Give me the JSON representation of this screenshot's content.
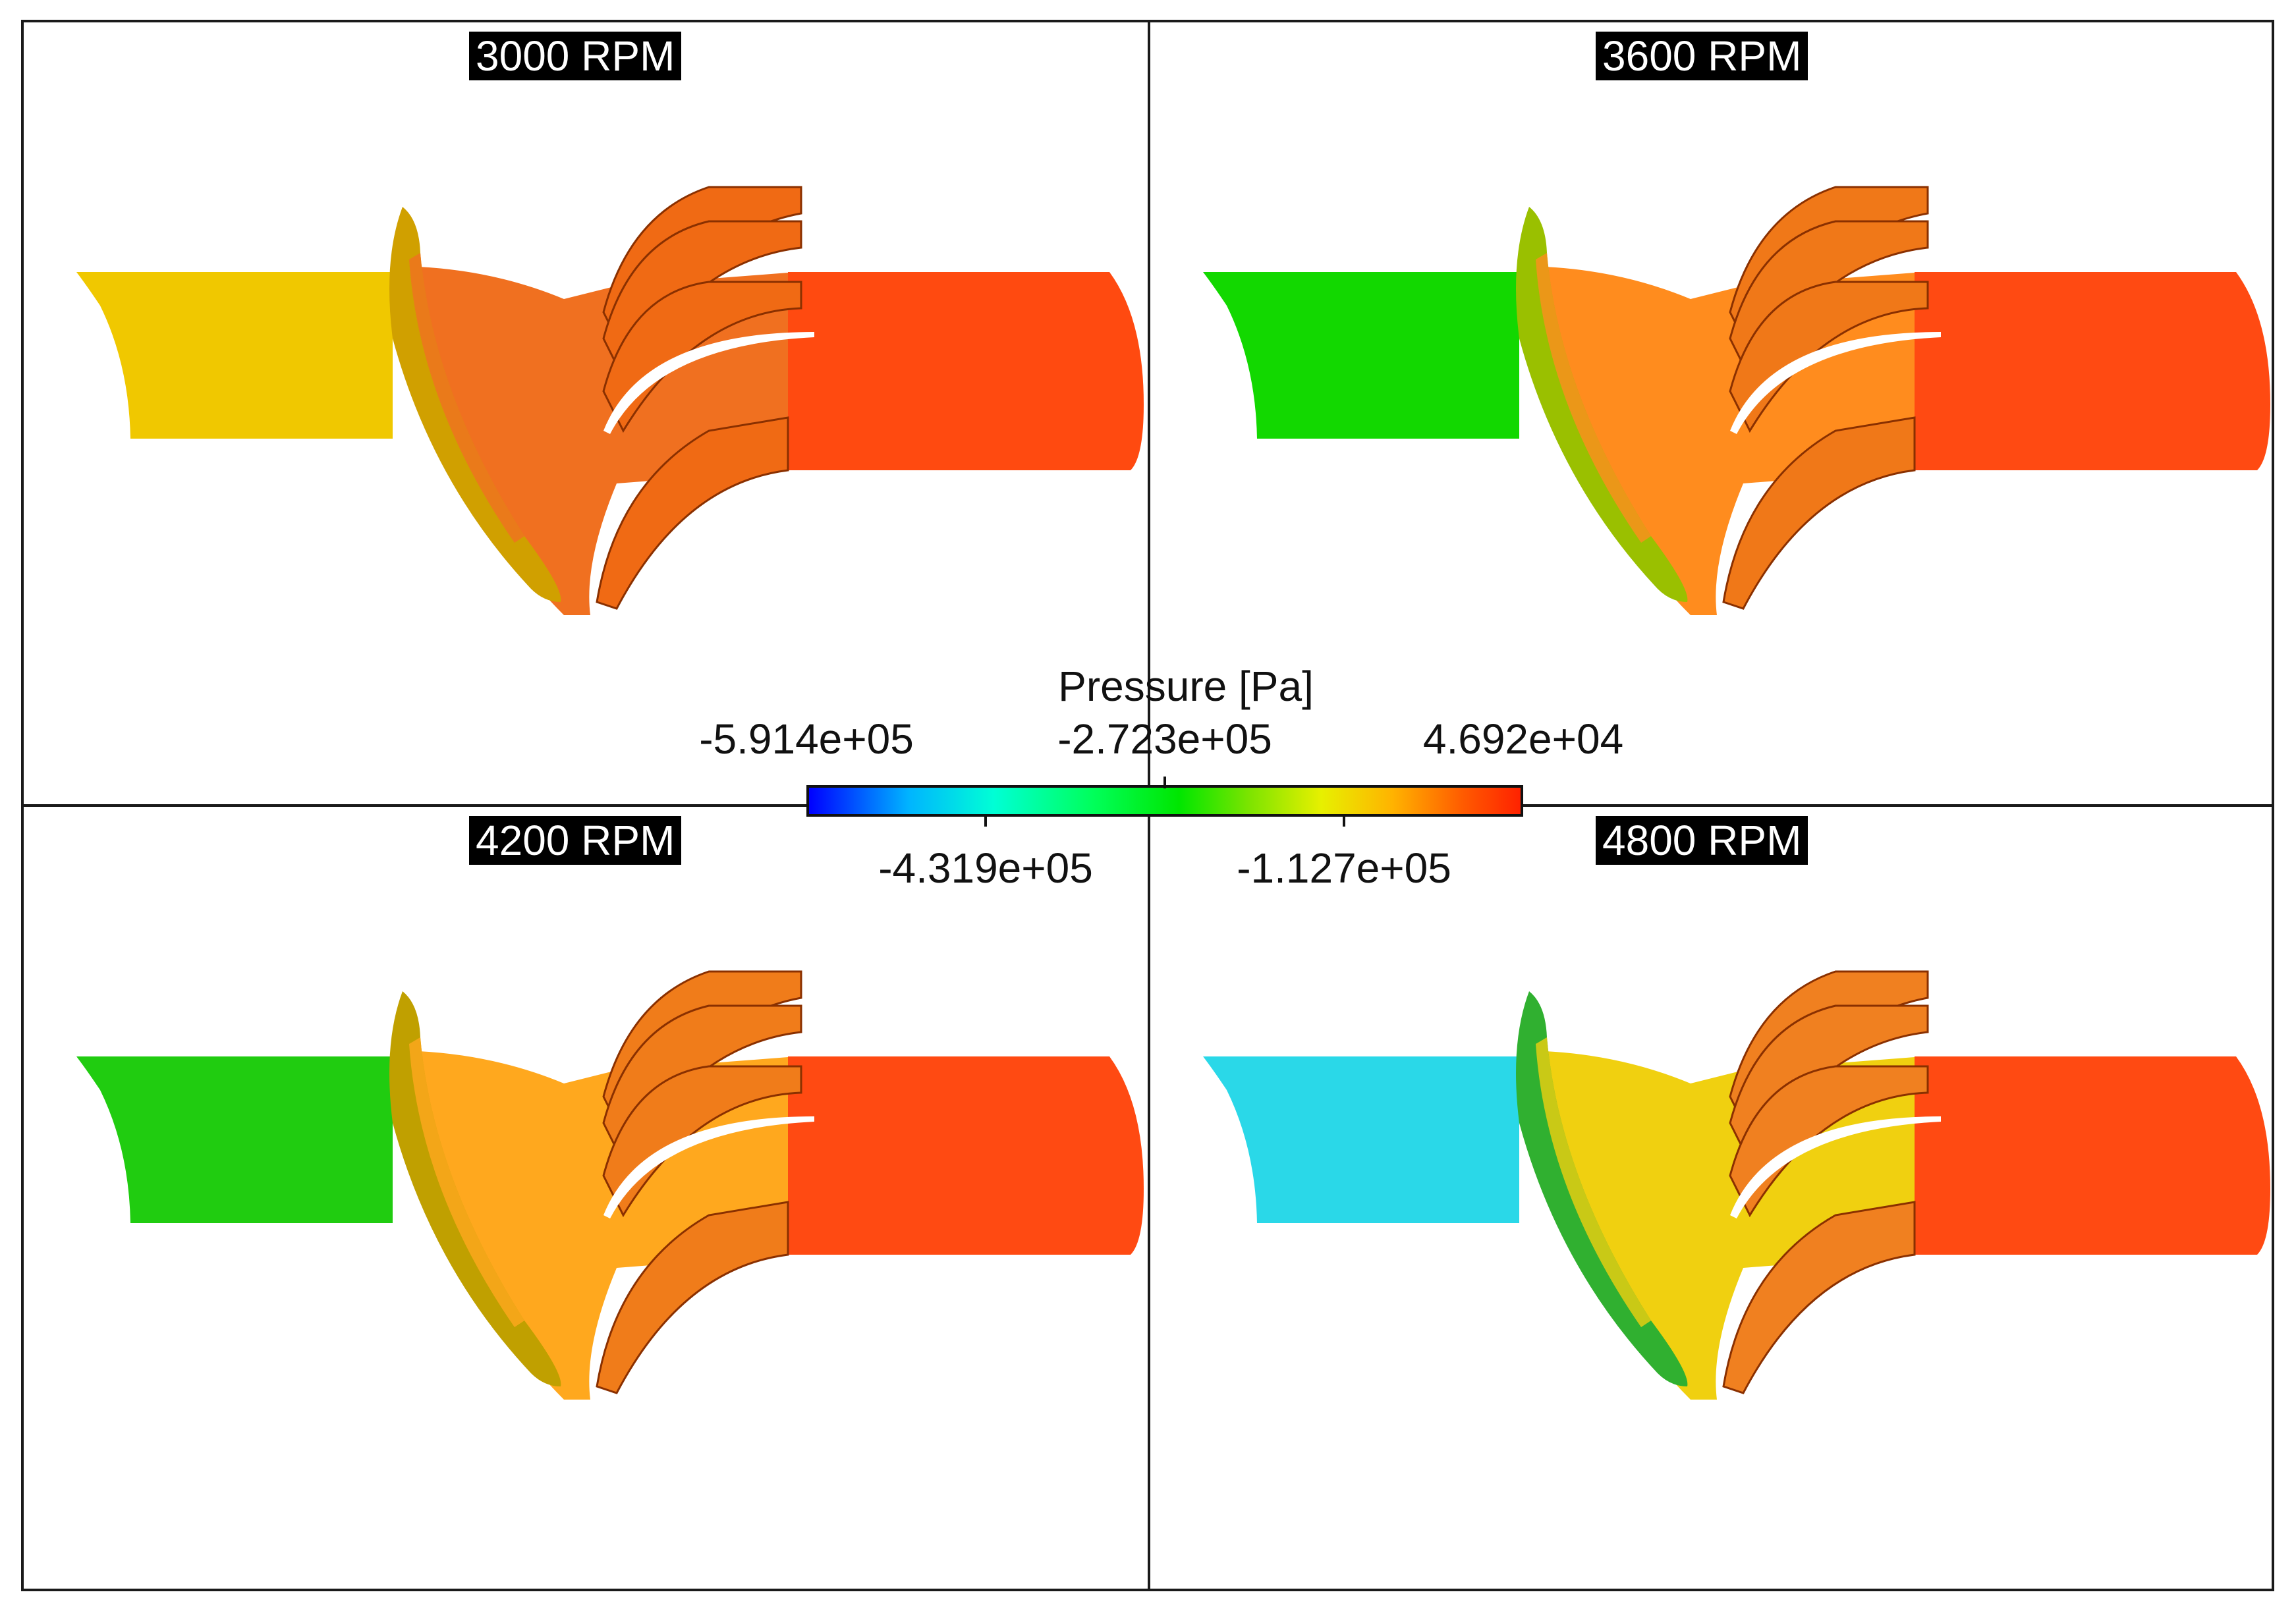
{
  "panels": [
    {
      "label": "3000 RPM",
      "colors": {
        "inlet": "#f0c800",
        "hub": "#f07020",
        "blades": "#f06a14",
        "outlet": "#ff4a10",
        "rotor_edge": "#d0a000"
      }
    },
    {
      "label": "3600 RPM",
      "colors": {
        "inlet": "#12d800",
        "hub": "#ff8c1e",
        "blades": "#f07818",
        "outlet": "#ff4a12",
        "rotor_edge": "#9ac000"
      }
    },
    {
      "label": "4200 RPM",
      "colors": {
        "inlet": "#20cc10",
        "hub": "#ffa81e",
        "blades": "#f07c1a",
        "outlet": "#ff4a12",
        "rotor_edge": "#c0a000"
      }
    },
    {
      "label": "4800 RPM",
      "colors": {
        "inlet": "#2ad8e8",
        "hub": "#f0d010",
        "blades": "#f08020",
        "outlet": "#ff4a12",
        "rotor_edge": "#30b030"
      }
    }
  ],
  "legend": {
    "title": "Pressure [Pa]",
    "top_ticks": [
      "-5.914e+05",
      "-2.723e+05",
      "4.692e+04"
    ],
    "bottom_ticks": [
      "-4.319e+05",
      "-1.127e+05"
    ]
  }
}
